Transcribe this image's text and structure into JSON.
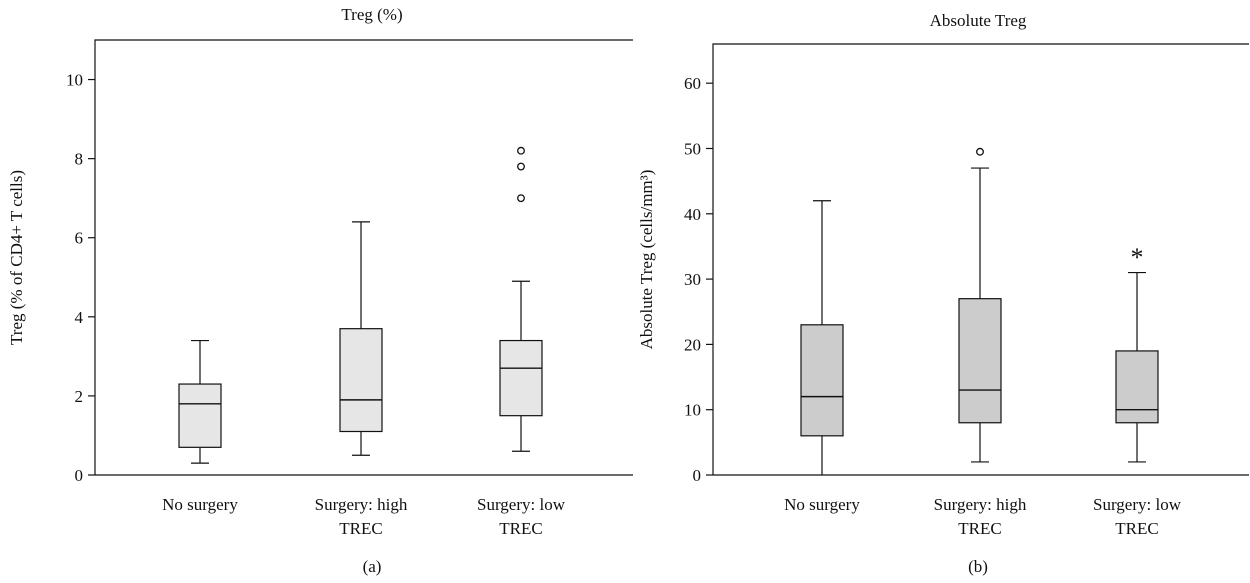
{
  "chart_data": [
    {
      "type": "box",
      "panel_label": "(a)",
      "title": "Treg (%)",
      "ylabel": "Treg (% of CD4+ T cells)",
      "ylim": [
        0,
        11
      ],
      "yticks": [
        0,
        2,
        4,
        6,
        8,
        10
      ],
      "box_color": "#e6e6e6",
      "categories": [
        {
          "line1": "No surgery",
          "line2": ""
        },
        {
          "line1": "Surgery: high",
          "line2": "TREC"
        },
        {
          "line1": "Surgery: low",
          "line2": "TREC"
        }
      ],
      "boxes": [
        {
          "min": 0.3,
          "q1": 0.7,
          "median": 1.8,
          "q3": 2.3,
          "max": 3.4,
          "outliers": [],
          "extremes": []
        },
        {
          "min": 0.5,
          "q1": 1.1,
          "median": 1.9,
          "q3": 3.7,
          "max": 6.4,
          "outliers": [],
          "extremes": []
        },
        {
          "min": 0.6,
          "q1": 1.5,
          "median": 2.7,
          "q3": 3.4,
          "max": 4.9,
          "outliers": [
            7.0,
            7.8,
            8.2
          ],
          "extremes": []
        }
      ]
    },
    {
      "type": "box",
      "panel_label": "(b)",
      "title": "Absolute Treg",
      "ylabel": "Absolute Treg (cells/mm³)",
      "ylim": [
        0,
        66
      ],
      "yticks": [
        0,
        10,
        20,
        30,
        40,
        50,
        60
      ],
      "box_color": "#cccccc",
      "categories": [
        {
          "line1": "No surgery",
          "line2": ""
        },
        {
          "line1": "Surgery: high",
          "line2": "TREC"
        },
        {
          "line1": "Surgery: low",
          "line2": "TREC"
        }
      ],
      "boxes": [
        {
          "min": 0,
          "q1": 6,
          "median": 12,
          "q3": 23,
          "max": 42,
          "outliers": [],
          "extremes": []
        },
        {
          "min": 2,
          "q1": 8,
          "median": 13,
          "q3": 27,
          "max": 47,
          "outliers": [
            49.5
          ],
          "extremes": []
        },
        {
          "min": 2,
          "q1": 8,
          "median": 10,
          "q3": 19,
          "max": 31,
          "outliers": [],
          "extremes": [
            33.5
          ]
        }
      ]
    }
  ]
}
